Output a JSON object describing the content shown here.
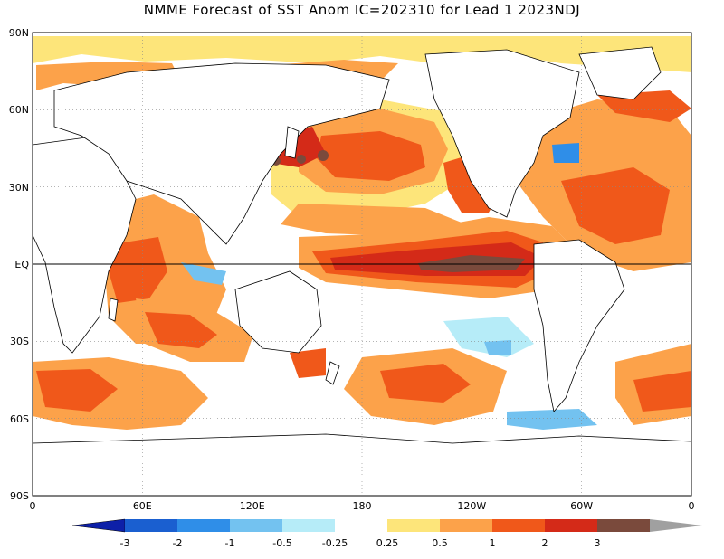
{
  "title": "NMME Forecast of SST Anom IC=202310 for Lead 1 2023NDJ",
  "map": {
    "lat_labels": [
      "90N",
      "60N",
      "30N",
      "EQ",
      "30S",
      "60S",
      "90S"
    ],
    "lon_labels": [
      "0",
      "60E",
      "120E",
      "180",
      "120W",
      "60W",
      "0"
    ],
    "grid": "dotted"
  },
  "colorbar": {
    "labels": [
      "-3",
      "-2",
      "-1",
      "-0.5",
      "-0.25",
      "0.25",
      "0.5",
      "1",
      "2",
      "3"
    ],
    "colors": [
      "#0d20a8",
      "#1a5fd0",
      "#2f8ee8",
      "#73c2f0",
      "#b6ecf8",
      "#ffffff",
      "#fde57a",
      "#fca24a",
      "#f0581a",
      "#d42a18",
      "#7a4a3c",
      "#a0a0a0"
    ]
  },
  "colors": {
    "land": "#ffffff",
    "coast": "#000000",
    "weak_warm": "#fde57a",
    "warm": "#fca24a",
    "strong_warm": "#f0581a",
    "very_warm": "#d42a18",
    "extreme": "#7a4a3c",
    "cool": "#b6ecf8",
    "cold": "#73c2f0",
    "colder": "#2f8ee8"
  }
}
